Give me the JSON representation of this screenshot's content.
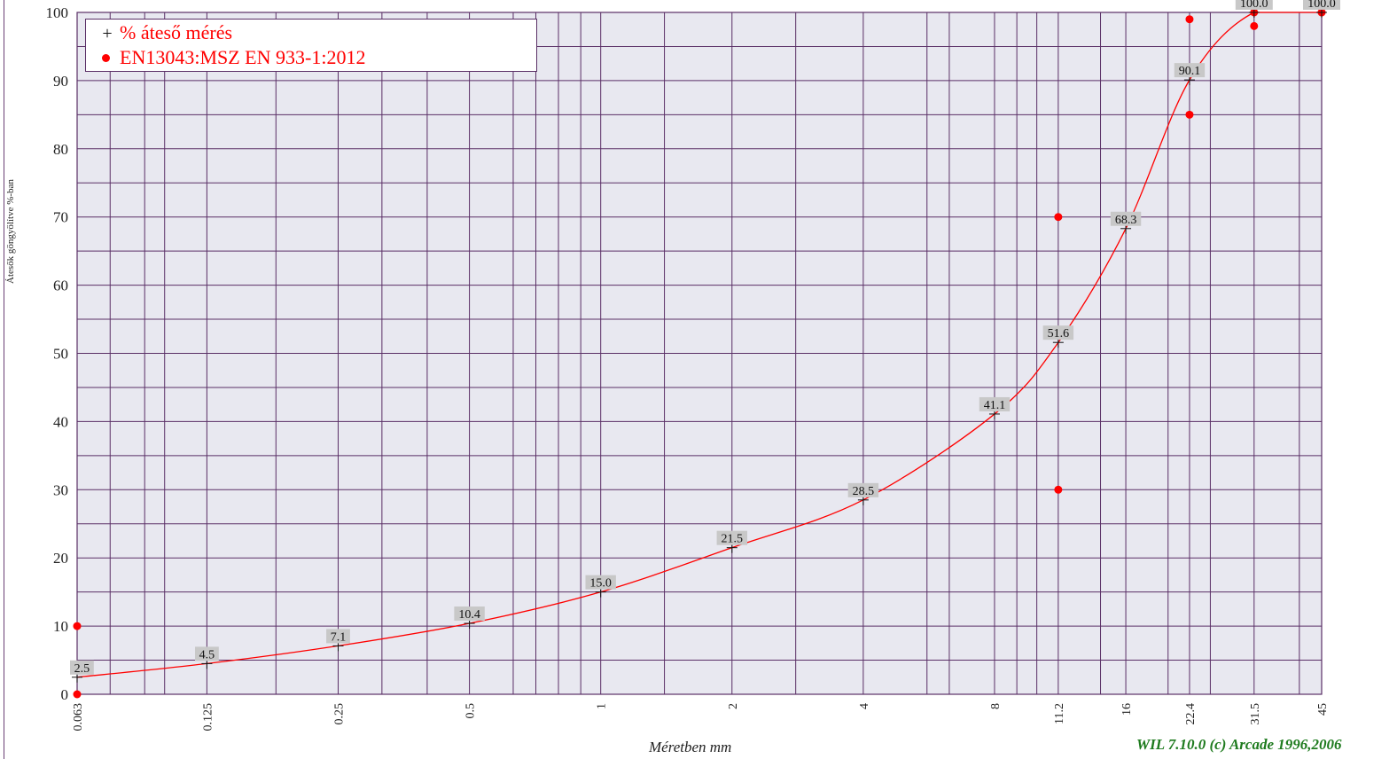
{
  "chart_data": {
    "type": "line",
    "xscale": "log",
    "xlabel": "Méretben mm",
    "ylabel": "Átesők göngyölítve %-ban",
    "ylim": [
      0,
      100
    ],
    "yticks": [
      0,
      10,
      20,
      30,
      40,
      50,
      60,
      70,
      80,
      90,
      100
    ],
    "xtick_labels": [
      "0.063",
      "0.125",
      "0.25",
      "0.5",
      "1",
      "2",
      "4",
      "8",
      "11.2",
      "16",
      "22.4",
      "31.5",
      "45"
    ],
    "grid": true,
    "legend_position": "top-left",
    "series": [
      {
        "name": "% áteső mérés",
        "marker": "plus",
        "color": "#ff0000",
        "x": [
          0.063,
          0.125,
          0.25,
          0.5,
          1,
          2,
          4,
          8,
          11.2,
          16,
          22.4,
          31.5,
          45
        ],
        "y": [
          2.5,
          4.5,
          7.1,
          10.4,
          15.0,
          21.5,
          28.5,
          41.1,
          51.6,
          68.3,
          90.1,
          100.0,
          100.0
        ],
        "labels": [
          "2.5",
          "4.5",
          "7.1",
          "10.4",
          "15.0",
          "21.5",
          "28.5",
          "41.1",
          "51.6",
          "68.3",
          "90.1",
          "100.0",
          "100.0"
        ]
      },
      {
        "name": "EN13043:MSZ EN 933-1:2012",
        "marker": "dot",
        "color": "#ff0000",
        "x": [
          0.063,
          0.063,
          11.2,
          11.2,
          22.4,
          22.4,
          31.5,
          31.5,
          45,
          45
        ],
        "y": [
          0,
          10,
          30,
          70,
          85,
          99,
          98,
          100,
          100,
          100
        ]
      }
    ]
  },
  "credit": "WIL 7.10.0 (c) Arcade 1996,2006",
  "colors": {
    "plot_bg": "#e8e8f0",
    "grid": "#5a2f66",
    "series": "#ff0000",
    "label_bg": "#c8c8c8"
  }
}
